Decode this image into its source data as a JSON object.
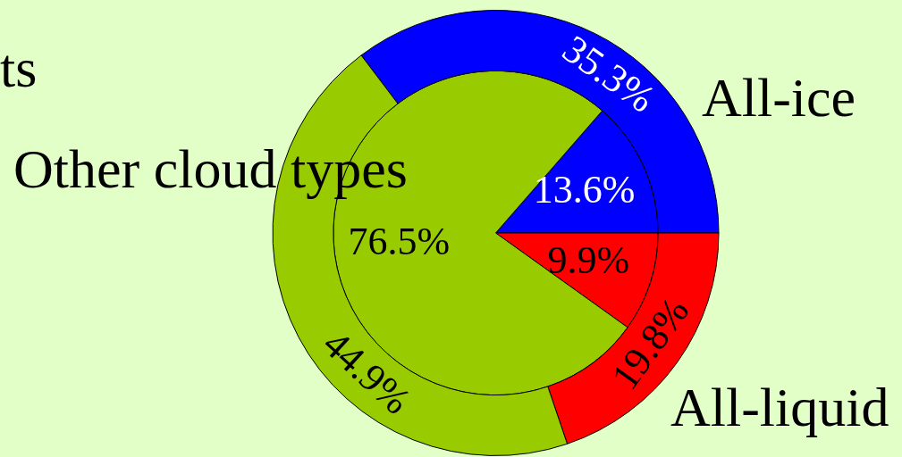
{
  "chart_data": {
    "type": "pie",
    "categories": [
      "All-ice",
      "All-liquid",
      "Other cloud types"
    ],
    "colors": [
      "#0000ff",
      "#ff0000",
      "#99cc00"
    ],
    "series": [
      {
        "values": [
          13.6,
          9.9,
          76.5
        ],
        "value_labels": [
          "13.6%",
          "9.9%",
          "76.5%"
        ]
      },
      {
        "values": [
          35.3,
          19.8,
          44.9
        ],
        "value_labels": [
          "35.3%",
          "19.8%",
          "44.9%"
        ]
      }
    ],
    "legend": false,
    "annotations": [
      "ts"
    ]
  }
}
